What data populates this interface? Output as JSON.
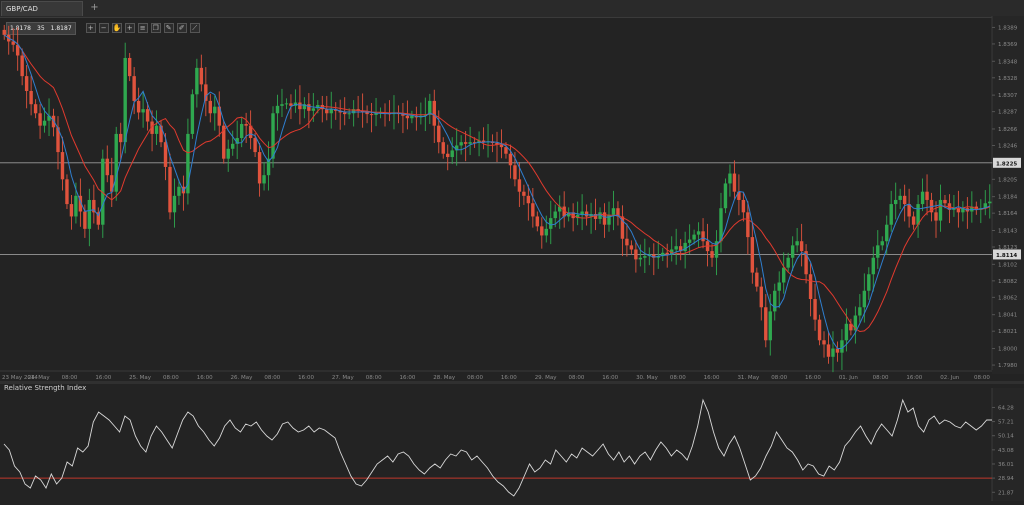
{
  "window": {
    "tab_label": "GBP/CAD",
    "tab_add": "+"
  },
  "toolbar": {
    "bid": "1.8178",
    "spread_sep": "35",
    "ask": "1.8187",
    "buttons": [
      {
        "icon": "zoom-in-icon",
        "glyph": "+"
      },
      {
        "icon": "zoom-out-icon",
        "glyph": "−"
      },
      {
        "icon": "hand-icon",
        "glyph": "✋"
      },
      {
        "icon": "crosshair-icon",
        "glyph": "+"
      },
      {
        "icon": "list-icon",
        "glyph": "≡"
      },
      {
        "icon": "copy-icon",
        "glyph": "❐"
      },
      {
        "icon": "pencil-icon",
        "glyph": "✎"
      },
      {
        "icon": "brush-icon",
        "glyph": "✐"
      },
      {
        "icon": "line-tool-icon",
        "glyph": "⟋"
      }
    ]
  },
  "colors": {
    "background": "#232323",
    "bull": "#2fa84f",
    "bear": "#e0533d",
    "ma_fast": "#2f7fd0",
    "ma_slow": "#e03a2e",
    "rsi_line": "#d9d9d9",
    "rsi_level": "#c0392b",
    "hline": "#9a9a9a"
  },
  "chart_data": [
    {
      "type": "candlestick",
      "title": "",
      "ylim": [
        1.7974,
        1.8398
      ],
      "y_ticks": [
        "1.8389",
        "1.8369",
        "1.8348",
        "1.8328",
        "1.8307",
        "1.8287",
        "1.8266",
        "1.8246",
        "1.8225",
        "1.8205",
        "1.8184",
        "1.8164",
        "1.8143",
        "1.8123",
        "1.8102",
        "1.8082",
        "1.8062",
        "1.8041",
        "1.8021",
        "1.8000",
        "1.7980"
      ],
      "x_ticks": [
        "23 May 2014",
        "24. May",
        "08:00",
        "16:00",
        "25. May",
        "08:00",
        "16:00",
        "26. May",
        "08:00",
        "16:00",
        "27. May",
        "08:00",
        "16:00",
        "28. May",
        "08:00",
        "16:00",
        "29. May",
        "08:00",
        "16:00",
        "30. May",
        "08:00",
        "16:00",
        "31. May",
        "08:00",
        "16:00",
        "01. Jun",
        "08:00",
        "16:00",
        "02. Jun",
        "08:00"
      ],
      "hlines": [
        {
          "value": 1.8225,
          "label": "1.8225"
        },
        {
          "value": 1.8114,
          "label": "1.8114"
        }
      ],
      "close": [
        1.838,
        1.8372,
        1.8368,
        1.8355,
        1.833,
        1.8312,
        1.8296,
        1.8285,
        1.827,
        1.8276,
        1.8282,
        1.8268,
        1.8238,
        1.8205,
        1.8175,
        1.816,
        1.8185,
        1.8166,
        1.8145,
        1.818,
        1.8165,
        1.815,
        1.823,
        1.821,
        1.819,
        1.826,
        1.825,
        1.8352,
        1.833,
        1.83,
        1.8286,
        1.829,
        1.8275,
        1.826,
        1.827,
        1.825,
        1.822,
        1.8165,
        1.8185,
        1.8196,
        1.8188,
        1.826,
        1.8308,
        1.834,
        1.832,
        1.83,
        1.8285,
        1.8293,
        1.827,
        1.823,
        1.8242,
        1.8248,
        1.8255,
        1.8272,
        1.827,
        1.8255,
        1.8238,
        1.82,
        1.821,
        1.823,
        1.8285,
        1.8294,
        1.8296,
        1.8297,
        1.8294,
        1.8298,
        1.829,
        1.8296,
        1.8288,
        1.8291,
        1.8295,
        1.829,
        1.8285,
        1.829,
        1.8288,
        1.8286,
        1.8284,
        1.8285,
        1.829,
        1.8288,
        1.8286,
        1.8284,
        1.8283,
        1.8285,
        1.8286,
        1.8285,
        1.8284,
        1.8286,
        1.8284,
        1.8282,
        1.8279,
        1.8282,
        1.828,
        1.8282,
        1.8283,
        1.83,
        1.827,
        1.825,
        1.8236,
        1.8232,
        1.824,
        1.8246,
        1.825,
        1.8248,
        1.825,
        1.8249,
        1.8252,
        1.825,
        1.8251,
        1.8249,
        1.8247,
        1.8244,
        1.8236,
        1.8222,
        1.8205,
        1.819,
        1.8185,
        1.8176,
        1.816,
        1.8148,
        1.8137,
        1.8145,
        1.8158,
        1.8166,
        1.8172,
        1.816,
        1.8165,
        1.8158,
        1.8162,
        1.8166,
        1.816,
        1.8163,
        1.8157,
        1.8165,
        1.815,
        1.8162,
        1.817,
        1.816,
        1.8133,
        1.8125,
        1.812,
        1.8108,
        1.811,
        1.8112,
        1.8114,
        1.811,
        1.8112,
        1.8116,
        1.8114,
        1.812,
        1.8124,
        1.8118,
        1.8128,
        1.8132,
        1.8138,
        1.8142,
        1.813,
        1.8118,
        1.811,
        1.813,
        1.817,
        1.82,
        1.8212,
        1.819,
        1.818,
        1.8165,
        1.8135,
        1.8092,
        1.8075,
        1.805,
        1.801,
        1.8045,
        1.807,
        1.808,
        1.8098,
        1.811,
        1.8125,
        1.813,
        1.8118,
        1.809,
        1.806,
        1.8035,
        1.801,
        1.8005,
        1.799,
        1.8,
        1.7995,
        1.801,
        1.803,
        1.8022,
        1.804,
        1.805,
        1.807,
        1.809,
        1.811,
        1.8125,
        1.813,
        1.815,
        1.8175,
        1.818,
        1.8185,
        1.8175,
        1.816,
        1.815,
        1.8175,
        1.819,
        1.818,
        1.8165,
        1.8155,
        1.818,
        1.8176,
        1.8168,
        1.817,
        1.8165,
        1.817,
        1.8166,
        1.8172,
        1.8168,
        1.817,
        1.8176,
        1.8178
      ],
      "series": [
        {
          "name": "",
          "kind": "ma_fast"
        },
        {
          "name": "",
          "kind": "ma_slow"
        }
      ]
    },
    {
      "type": "line",
      "title": "Relative Strength Index",
      "ylim": [
        17.5,
        72
      ],
      "y_ticks": [
        "64.28",
        "57.21",
        "50.14",
        "43.08",
        "36.01",
        "28.94",
        "21.87"
      ],
      "level": 28.94,
      "values": [
        46,
        43,
        35,
        32,
        26,
        24,
        30,
        28,
        24,
        31,
        26,
        29,
        37,
        35,
        44,
        42,
        45,
        57,
        62,
        60,
        58,
        55,
        52,
        60,
        58,
        50,
        45,
        42,
        50,
        55,
        52,
        48,
        44,
        51,
        58,
        62,
        60,
        55,
        52,
        48,
        45,
        49,
        55,
        58,
        54,
        52,
        56,
        55,
        57,
        53,
        50,
        48,
        51,
        56,
        57,
        54,
        52,
        53,
        55,
        52,
        54,
        53,
        51,
        49,
        42,
        36,
        30,
        26,
        25,
        28,
        32,
        36,
        38,
        40,
        37,
        41,
        42,
        40,
        36,
        33,
        31,
        34,
        36,
        34,
        38,
        41,
        40,
        43,
        42,
        38,
        40,
        37,
        34,
        30,
        27,
        25,
        22,
        20,
        24,
        30,
        36,
        32,
        34,
        38,
        36,
        43,
        40,
        37,
        41,
        39,
        44,
        42,
        40,
        43,
        46,
        41,
        38,
        42,
        37,
        40,
        36,
        40,
        42,
        38,
        43,
        47,
        44,
        40,
        43,
        41,
        38,
        45,
        55,
        68,
        62,
        52,
        44,
        40,
        46,
        50,
        44,
        36,
        28,
        30,
        34,
        40,
        45,
        52,
        48,
        44,
        42,
        38,
        33,
        36,
        35,
        31,
        30,
        35,
        33,
        37,
        45,
        48,
        52,
        55,
        50,
        46,
        52,
        56,
        53,
        50,
        58,
        68,
        62,
        64,
        55,
        52,
        58,
        60,
        56,
        58,
        57,
        55,
        54,
        57,
        55,
        53,
        55,
        58,
        58
      ]
    }
  ]
}
